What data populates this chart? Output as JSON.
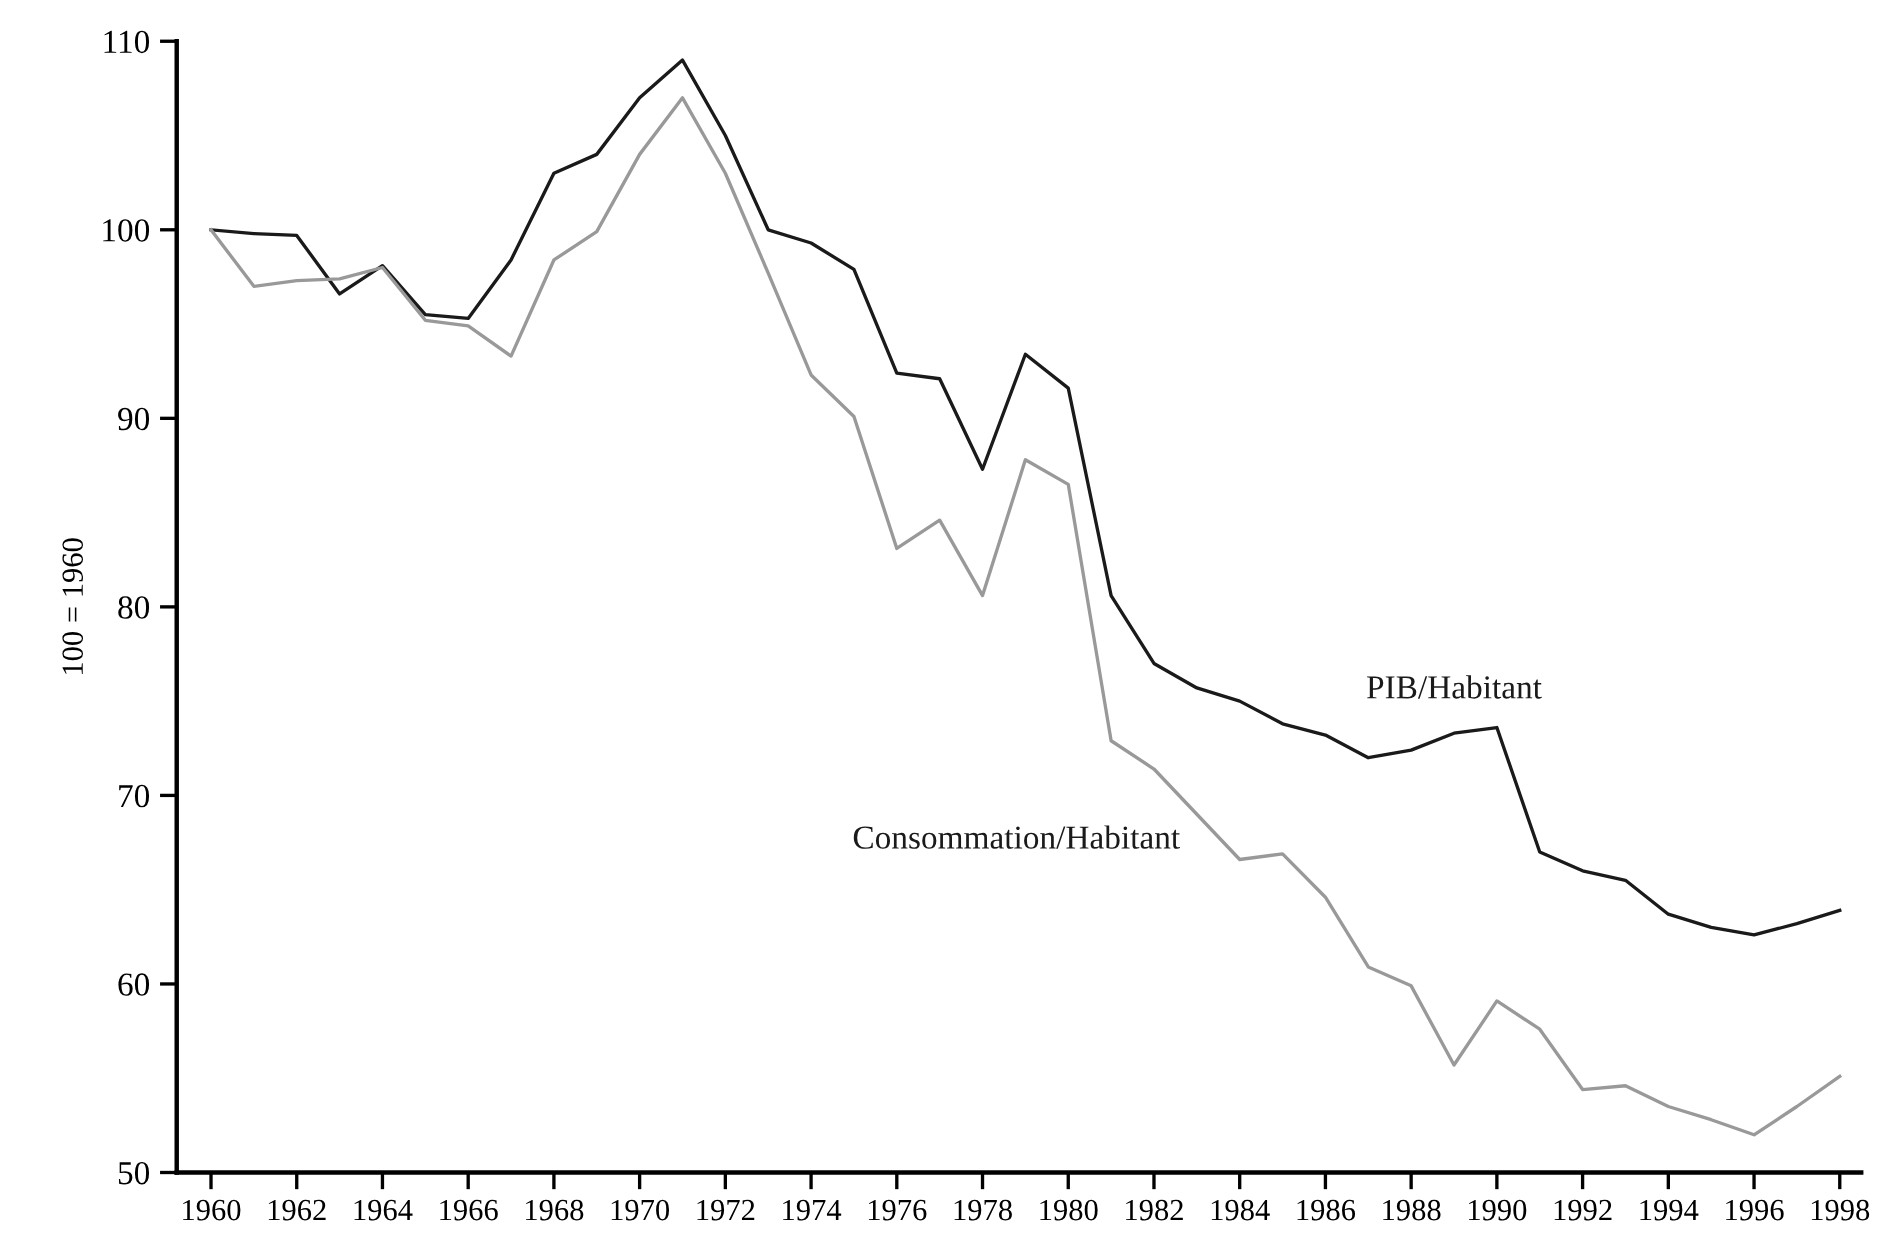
{
  "chart_data": {
    "type": "line",
    "ylabel": "100 = 1960",
    "x": [
      1960,
      1961,
      1962,
      1963,
      1964,
      1965,
      1966,
      1967,
      1968,
      1969,
      1970,
      1971,
      1972,
      1973,
      1974,
      1975,
      1976,
      1977,
      1978,
      1979,
      1980,
      1981,
      1982,
      1983,
      1984,
      1985,
      1986,
      1987,
      1988,
      1989,
      1990,
      1991,
      1992,
      1993,
      1994,
      1995,
      1996,
      1997,
      1998
    ],
    "series": [
      {
        "name": "PIB/Habitant",
        "color": "#1a1a1a",
        "values": [
          100,
          99.8,
          99.7,
          96.6,
          98.1,
          95.5,
          95.3,
          98.4,
          103,
          104,
          107,
          109,
          105,
          100,
          99.3,
          97.9,
          92.4,
          92.1,
          87.3,
          93.4,
          91.6,
          80.6,
          77.0,
          75.7,
          75.0,
          73.8,
          73.2,
          72.0,
          72.4,
          73.3,
          73.6,
          67.0,
          66.0,
          65.5,
          63.7,
          63.0,
          62.6,
          63.2,
          63.9
        ]
      },
      {
        "name": "Consommation/Habitant",
        "color": "#999999",
        "values": [
          100,
          97.0,
          97.3,
          97.4,
          98.0,
          95.2,
          94.9,
          93.3,
          98.4,
          99.9,
          104,
          107,
          103,
          97.7,
          92.3,
          90.1,
          83.1,
          84.6,
          80.6,
          87.8,
          86.5,
          72.9,
          71.4,
          69.0,
          66.6,
          66.9,
          64.6,
          60.9,
          59.9,
          55.7,
          59.1,
          57.6,
          54.4,
          54.6,
          53.5,
          52.8,
          52.0,
          53.5,
          55.1
        ]
      }
    ],
    "xlim": [
      1959.2,
      1998.5
    ],
    "xticks": [
      1960,
      1962,
      1964,
      1966,
      1968,
      1970,
      1972,
      1974,
      1976,
      1978,
      1980,
      1982,
      1984,
      1986,
      1988,
      1990,
      1992,
      1994,
      1996,
      1998
    ],
    "ylim": [
      50,
      110
    ],
    "yticks": [
      50,
      60,
      70,
      80,
      90,
      100,
      110
    ],
    "grid": false,
    "legend": false
  }
}
